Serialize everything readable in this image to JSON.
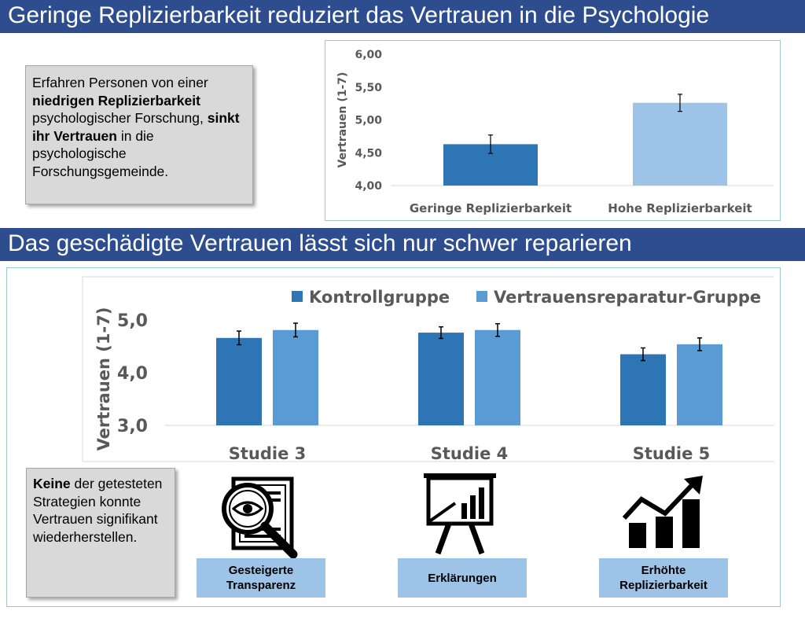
{
  "section1": {
    "title": "Geringe Replizierbarkeit reduziert das Vertrauen in die Psychologie",
    "note": {
      "t1": "Erfahren Personen von einer ",
      "b1": "niedrigen Replizierbarkeit",
      "t2": " psychologischer Forschung, ",
      "b2": "sinkt ihr Vertrauen",
      "t3": " in die psychologische Forschungsgemeinde."
    }
  },
  "section2": {
    "title": "Das geschädigte Vertrauen lässt sich nur schwer reparieren",
    "note": {
      "b1": "Keine",
      "t1": " der getesteten Strategien konnte Vertrauen signifikant wiederherstellen."
    },
    "strategies": [
      {
        "label": "Gesteigerte Transparenz",
        "icon": "magnifier-document-icon"
      },
      {
        "label": "Erklärungen",
        "icon": "presentation-board-icon"
      },
      {
        "label": "Erhöhte Replizierbarkeit",
        "icon": "growth-chart-icon"
      }
    ]
  },
  "colors": {
    "banner": "#2e4d8e",
    "dark_bar": "#2e75b6",
    "light_bar": "#9dc3e6",
    "light_bar2": "#5b9bd5"
  },
  "chart_data": [
    {
      "type": "bar",
      "categories": [
        "Geringe Replizierbarkeit",
        "Hohe Replizierbarkeit"
      ],
      "values": [
        4.63,
        5.26
      ],
      "errors": [
        0.14,
        0.13
      ],
      "ylabel": "Vertrauen (1-7)",
      "ylim": [
        4.0,
        6.0
      ],
      "yticks": [
        "4,00",
        "4,50",
        "5,00",
        "5,50",
        "6,00"
      ],
      "ytick_values": [
        4.0,
        4.5,
        5.0,
        5.5,
        6.0
      ],
      "grid": false
    },
    {
      "type": "bar",
      "categories": [
        "Studie 3",
        "Studie 4",
        "Studie 5"
      ],
      "series": [
        {
          "name": "Kontrollgruppe",
          "values": [
            4.66,
            4.76,
            4.35
          ],
          "errors": [
            0.13,
            0.11,
            0.12
          ]
        },
        {
          "name": "Vertrauensreparatur-Gruppe",
          "values": [
            4.81,
            4.81,
            4.54
          ],
          "errors": [
            0.13,
            0.12,
            0.12
          ]
        }
      ],
      "ylabel": "Vertrauen (1-7)",
      "ylim": [
        3.0,
        5.0
      ],
      "yticks": [
        "3,0",
        "4,0",
        "5,0"
      ],
      "ytick_values": [
        3.0,
        4.0,
        5.0
      ],
      "legend": "top",
      "grid": false
    }
  ]
}
